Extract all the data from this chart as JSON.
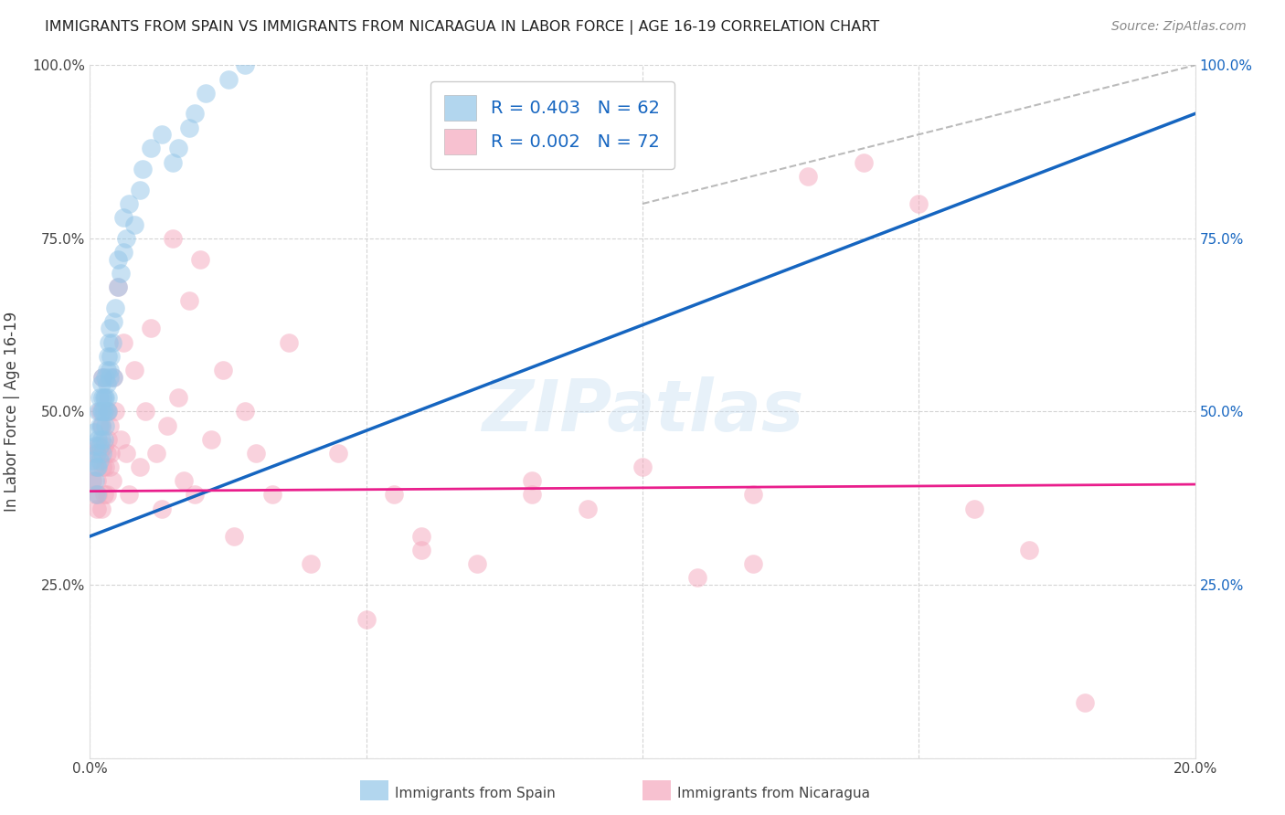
{
  "title": "IMMIGRANTS FROM SPAIN VS IMMIGRANTS FROM NICARAGUA IN LABOR FORCE | AGE 16-19 CORRELATION CHART",
  "source": "Source: ZipAtlas.com",
  "ylabel": "In Labor Force | Age 16-19",
  "legend_label_spain": "Immigrants from Spain",
  "legend_label_nicaragua": "Immigrants from Nicaragua",
  "R_spain": 0.403,
  "N_spain": 62,
  "R_nicaragua": 0.002,
  "N_nicaragua": 72,
  "color_spain": "#92c5e8",
  "color_nicaragua": "#f4a7bc",
  "color_spain_line": "#1565c0",
  "color_nicaragua_line": "#e91e8c",
  "xlim": [
    0.0,
    0.2
  ],
  "ylim": [
    0.0,
    1.0
  ],
  "xticks": [
    0.0,
    0.05,
    0.1,
    0.15,
    0.2
  ],
  "xtick_labels": [
    "0.0%",
    "",
    "",
    "",
    "20.0%"
  ],
  "yticks": [
    0.0,
    0.25,
    0.5,
    0.75,
    1.0
  ],
  "ytick_labels_left": [
    "",
    "25.0%",
    "50.0%",
    "75.0%",
    "100.0%"
  ],
  "ytick_labels_right": [
    "",
    "25.0%",
    "50.0%",
    "75.0%",
    "100.0%"
  ],
  "spain_x": [
    0.0005,
    0.0008,
    0.001,
    0.001,
    0.0012,
    0.0012,
    0.0013,
    0.0015,
    0.0015,
    0.0015,
    0.0017,
    0.0017,
    0.0018,
    0.0018,
    0.002,
    0.002,
    0.002,
    0.002,
    0.0022,
    0.0022,
    0.0023,
    0.0023,
    0.0025,
    0.0025,
    0.0026,
    0.0027,
    0.0028,
    0.0028,
    0.003,
    0.003,
    0.0031,
    0.0032,
    0.0033,
    0.0033,
    0.0034,
    0.0035,
    0.0036,
    0.0036,
    0.0038,
    0.004,
    0.0042,
    0.0043,
    0.0045,
    0.005,
    0.005,
    0.0055,
    0.006,
    0.006,
    0.0065,
    0.007,
    0.008,
    0.009,
    0.0095,
    0.011,
    0.013,
    0.015,
    0.016,
    0.018,
    0.019,
    0.021,
    0.025,
    0.028
  ],
  "spain_y": [
    0.43,
    0.47,
    0.4,
    0.45,
    0.42,
    0.38,
    0.44,
    0.46,
    0.5,
    0.42,
    0.48,
    0.43,
    0.52,
    0.45,
    0.46,
    0.5,
    0.54,
    0.48,
    0.52,
    0.44,
    0.5,
    0.55,
    0.46,
    0.52,
    0.5,
    0.55,
    0.48,
    0.52,
    0.54,
    0.5,
    0.56,
    0.52,
    0.58,
    0.5,
    0.6,
    0.56,
    0.62,
    0.55,
    0.58,
    0.6,
    0.63,
    0.55,
    0.65,
    0.68,
    0.72,
    0.7,
    0.73,
    0.78,
    0.75,
    0.8,
    0.77,
    0.82,
    0.85,
    0.88,
    0.9,
    0.86,
    0.88,
    0.91,
    0.93,
    0.96,
    0.98,
    1.0
  ],
  "nicaragua_x": [
    0.0005,
    0.0008,
    0.001,
    0.001,
    0.0012,
    0.0013,
    0.0015,
    0.0015,
    0.0017,
    0.0018,
    0.002,
    0.002,
    0.0022,
    0.0023,
    0.0025,
    0.0026,
    0.0028,
    0.003,
    0.003,
    0.0032,
    0.0033,
    0.0035,
    0.0036,
    0.0038,
    0.004,
    0.0042,
    0.0045,
    0.005,
    0.0055,
    0.006,
    0.0065,
    0.007,
    0.008,
    0.009,
    0.01,
    0.011,
    0.012,
    0.013,
    0.014,
    0.015,
    0.016,
    0.017,
    0.018,
    0.019,
    0.02,
    0.022,
    0.024,
    0.026,
    0.028,
    0.03,
    0.033,
    0.036,
    0.04,
    0.045,
    0.05,
    0.055,
    0.06,
    0.07,
    0.08,
    0.09,
    0.1,
    0.11,
    0.12,
    0.13,
    0.14,
    0.15,
    0.16,
    0.17,
    0.18,
    0.06,
    0.08,
    0.12
  ],
  "nicaragua_y": [
    0.4,
    0.44,
    0.38,
    0.42,
    0.36,
    0.4,
    0.45,
    0.38,
    0.5,
    0.44,
    0.48,
    0.36,
    0.42,
    0.55,
    0.45,
    0.38,
    0.42,
    0.44,
    0.38,
    0.5,
    0.46,
    0.42,
    0.48,
    0.44,
    0.4,
    0.55,
    0.5,
    0.68,
    0.46,
    0.6,
    0.44,
    0.38,
    0.56,
    0.42,
    0.5,
    0.62,
    0.44,
    0.36,
    0.48,
    0.75,
    0.52,
    0.4,
    0.66,
    0.38,
    0.72,
    0.46,
    0.56,
    0.32,
    0.5,
    0.44,
    0.38,
    0.6,
    0.28,
    0.44,
    0.2,
    0.38,
    0.32,
    0.28,
    0.4,
    0.36,
    0.42,
    0.26,
    0.38,
    0.84,
    0.86,
    0.8,
    0.36,
    0.3,
    0.08,
    0.3,
    0.38,
    0.28
  ],
  "spain_line_x": [
    0.0,
    0.2
  ],
  "spain_line_y": [
    0.32,
    0.93
  ],
  "nicaragua_line_x": [
    0.0,
    0.2
  ],
  "nicaragua_line_y": [
    0.385,
    0.395
  ],
  "ref_line_x": [
    0.1,
    0.2
  ],
  "ref_line_y": [
    0.8,
    1.0
  ],
  "watermark_text": "ZIPatlas",
  "background_color": "#ffffff",
  "grid_color": "#d0d0d0"
}
